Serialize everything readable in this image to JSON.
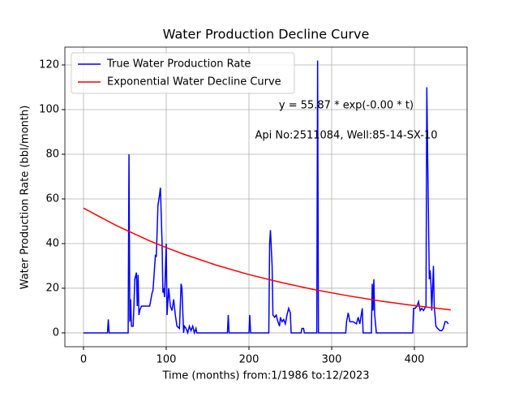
{
  "chart_data": {
    "type": "line",
    "title": "Water Production Decline Curve",
    "x_label": "Time (months) from:1/1986 to:12/2023",
    "y_label": "Water Production Rate (bbl/month)",
    "annotations": [
      "y = 55.87 * exp(-0.00 * t)",
      "Api No:2511084, Well:85-14-SX-10"
    ],
    "xlim": [
      -22.5,
      463.7
    ],
    "ylim": [
      -6.2,
      128
    ],
    "xticks": [
      0,
      100,
      200,
      300,
      400
    ],
    "yticks": [
      0,
      20,
      40,
      60,
      80,
      100,
      120
    ],
    "grid": true,
    "legend": "upper left",
    "series": [
      {
        "name": "True Water Production Rate",
        "color": "#0000ff",
        "x": [
          0,
          29,
          30,
          31,
          54,
          55,
          56,
          57,
          58,
          60,
          61,
          62,
          64,
          65,
          66,
          67,
          68,
          70,
          77,
          80,
          83,
          84,
          87,
          88,
          90,
          92,
          93,
          95,
          96,
          97,
          98,
          100,
          101,
          103,
          105,
          107,
          109,
          111,
          113,
          116,
          118,
          119,
          121,
          122,
          124,
          126,
          128,
          130,
          132,
          134,
          136,
          137,
          174,
          175,
          176,
          200,
          201,
          202,
          224,
          225,
          226,
          228,
          229,
          231,
          233,
          235,
          237,
          238,
          240,
          242,
          244,
          246,
          248,
          250,
          251,
          263,
          264,
          266,
          267,
          282,
          283,
          284,
          317,
          318,
          320,
          322,
          326,
          330,
          332,
          334,
          337,
          338,
          348,
          349,
          350,
          351,
          352,
          354,
          398,
          399,
          401,
          403,
          405,
          407,
          409,
          411,
          414,
          415,
          416,
          418,
          419,
          420,
          421,
          423,
          424,
          426,
          428,
          431,
          433,
          435,
          437,
          439,
          441
        ],
        "values": [
          0,
          0,
          6,
          0,
          0,
          80,
          5,
          15,
          3,
          3,
          12,
          24,
          27,
          12,
          26,
          8,
          10,
          12,
          12,
          12,
          18,
          19,
          35,
          34,
          57,
          62,
          65,
          40,
          18,
          20,
          16,
          40,
          8,
          20,
          12,
          10,
          15,
          8,
          3,
          2,
          22,
          20,
          0,
          3,
          2,
          0,
          3,
          1,
          3,
          0,
          2,
          0,
          0,
          8,
          0,
          0,
          8,
          0,
          0,
          40,
          46,
          30,
          8,
          7,
          8,
          5,
          3,
          7,
          5,
          6,
          4,
          8,
          11,
          9,
          0,
          0,
          2,
          2,
          0,
          0,
          122,
          0,
          0,
          5,
          9,
          5,
          5,
          4,
          7,
          4,
          11,
          0,
          0,
          22,
          10,
          24,
          8,
          0,
          0,
          11,
          11,
          12,
          14,
          10,
          11,
          10,
          12,
          110,
          80,
          24,
          28,
          22,
          10,
          30,
          12,
          3,
          2,
          1,
          1,
          2,
          5,
          5,
          4
        ]
      },
      {
        "name": "Exponential Water Decline Curve",
        "color": "#ff0000",
        "x": [
          0,
          40,
          80,
          100,
          120,
          160,
          200,
          240,
          280,
          320,
          360,
          400,
          444
        ],
        "values": [
          55.87,
          48.0,
          41.2,
          38.2,
          35.4,
          30.4,
          26.1,
          22.5,
          19.3,
          16.6,
          14.2,
          12.2,
          10.3
        ]
      }
    ]
  }
}
